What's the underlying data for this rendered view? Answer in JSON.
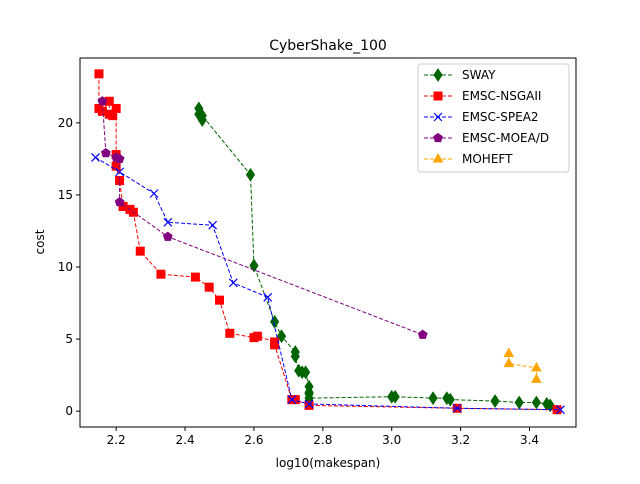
{
  "chart_data": {
    "type": "line",
    "title": "CyberShake_100",
    "xlabel": "log10(makespan)",
    "ylabel": "cost",
    "xlim": [
      2.095,
      3.535
    ],
    "ylim": [
      -1.1,
      24.5
    ],
    "xticks": [
      2.2,
      2.4,
      2.6,
      2.8,
      3.0,
      3.2,
      3.4
    ],
    "xtick_labels": [
      "2.2",
      "2.4",
      "2.6",
      "2.8",
      "3.0",
      "3.2",
      "3.4"
    ],
    "yticks": [
      0,
      5,
      10,
      15,
      20
    ],
    "ytick_labels": [
      "0",
      "5",
      "10",
      "15",
      "20"
    ],
    "grid": false,
    "legend_position": "top-right",
    "series": [
      {
        "name": "SWAY",
        "color": "#006400",
        "marker": "diamond",
        "x": [
          2.44,
          2.44,
          2.45,
          2.45,
          2.59,
          2.6,
          2.66,
          2.68,
          2.72,
          2.72,
          2.73,
          2.74,
          2.75,
          2.76,
          2.76,
          2.76,
          2.76,
          3.0,
          3.01,
          3.12,
          3.16,
          3.17,
          3.3,
          3.37,
          3.42,
          3.45,
          3.46
        ],
        "y": [
          21.0,
          20.6,
          20.2,
          20.5,
          16.4,
          10.1,
          6.2,
          5.2,
          4.1,
          3.8,
          2.8,
          2.7,
          2.7,
          1.7,
          1.3,
          1.2,
          0.9,
          1.0,
          1.0,
          0.9,
          0.9,
          0.8,
          0.7,
          0.6,
          0.6,
          0.5,
          0.4
        ]
      },
      {
        "name": "EMSC-NSGAII",
        "color": "#ff0000",
        "marker": "square",
        "x": [
          2.15,
          2.15,
          2.16,
          2.18,
          2.18,
          2.19,
          2.2,
          2.2,
          2.2,
          2.21,
          2.22,
          2.24,
          2.25,
          2.27,
          2.33,
          2.43,
          2.47,
          2.5,
          2.53,
          2.6,
          2.61,
          2.66,
          2.66,
          2.71,
          2.72,
          2.76,
          3.19,
          3.48
        ],
        "y": [
          23.4,
          21.0,
          20.8,
          21.5,
          20.6,
          20.5,
          21.0,
          17.8,
          17.0,
          16.0,
          14.2,
          14.0,
          13.8,
          11.1,
          9.5,
          9.3,
          8.6,
          7.7,
          5.4,
          5.1,
          5.2,
          4.8,
          4.6,
          0.8,
          0.8,
          0.4,
          0.2,
          0.1
        ]
      },
      {
        "name": "EMSC-SPEA2",
        "color": "#0000ff",
        "marker": "x",
        "x": [
          2.14,
          2.21,
          2.31,
          2.35,
          2.48,
          2.54,
          2.64,
          2.71,
          2.76,
          3.19,
          3.49
        ],
        "y": [
          17.6,
          16.6,
          15.1,
          13.1,
          12.9,
          8.9,
          7.9,
          0.8,
          0.5,
          0.2,
          0.1
        ]
      },
      {
        "name": "EMSC-MOEA/D",
        "color": "#800080",
        "marker": "pentagon",
        "x": [
          2.16,
          2.17,
          2.2,
          2.21,
          2.21,
          2.35,
          3.09
        ],
        "y": [
          21.5,
          17.9,
          17.6,
          17.5,
          14.5,
          12.1,
          5.3
        ]
      },
      {
        "name": "MOHEFT",
        "color": "#ffa500",
        "marker": "triangle",
        "x": [
          3.34,
          3.34,
          3.42,
          3.42
        ],
        "y": [
          4.0,
          3.3,
          3.0,
          2.2
        ]
      }
    ]
  }
}
